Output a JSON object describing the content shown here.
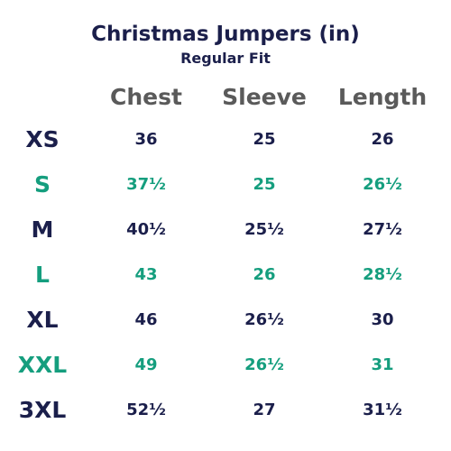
{
  "title": "Christmas Jumpers (in)",
  "subtitle": "Regular Fit",
  "columns": [
    "Chest",
    "Sleeve",
    "Length"
  ],
  "colors": {
    "navy": "#1b1f4b",
    "green": "#159e7e",
    "header_gray": "#5a5a5a"
  },
  "rows": [
    {
      "size": "XS",
      "chest": "36",
      "sleeve": "25",
      "length": "26"
    },
    {
      "size": "S",
      "chest": "37½",
      "sleeve": "25",
      "length": "26½"
    },
    {
      "size": "M",
      "chest": "40½",
      "sleeve": "25½",
      "length": "27½"
    },
    {
      "size": "L",
      "chest": "43",
      "sleeve": "26",
      "length": "28½"
    },
    {
      "size": "XL",
      "chest": "46",
      "sleeve": "26½",
      "length": "30"
    },
    {
      "size": "XXL",
      "chest": "49",
      "sleeve": "26½",
      "length": "31"
    },
    {
      "size": "3XL",
      "chest": "52½",
      "sleeve": "27",
      "length": "31½"
    }
  ]
}
